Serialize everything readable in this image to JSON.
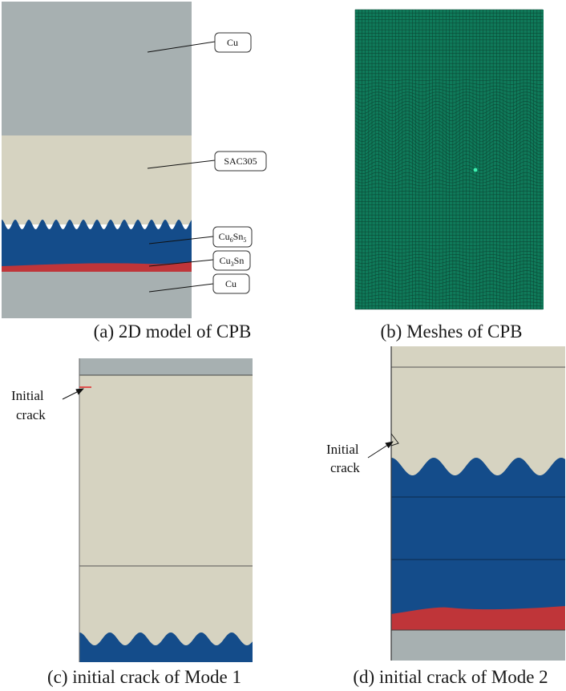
{
  "colors": {
    "cu": "#a7b0b1",
    "sac305": "#d6d3c1",
    "cu6sn5": "#144c8a",
    "cu3sn": "#bf3539",
    "mesh_bg": "#0f7a5a",
    "mesh_line": "#0c4a36",
    "mesh_node": "#3cf0b0",
    "crack_red": "#e03030"
  },
  "panel_a": {
    "labels": {
      "cu_top": "Cu",
      "sac305": "SAC305",
      "cu6sn5_base": "Cu",
      "cu6sn5_sub1": "6",
      "cu6sn5_mid": "Sn",
      "cu6sn5_sub2": "5",
      "cu3sn_base": "Cu",
      "cu3sn_sub": "3",
      "cu3sn_end": "Sn",
      "cu_bottom": "Cu"
    },
    "caption": "(a) 2D model of CPB"
  },
  "panel_b": {
    "caption": "(b) Meshes of CPB"
  },
  "panel_c": {
    "crack_label_line1": "Initial",
    "crack_label_line2": "crack",
    "caption": "(c) initial crack of Mode 1"
  },
  "panel_d": {
    "crack_label_line1": "Initial",
    "crack_label_line2": "crack",
    "caption": "(d) initial crack of Mode 2"
  }
}
